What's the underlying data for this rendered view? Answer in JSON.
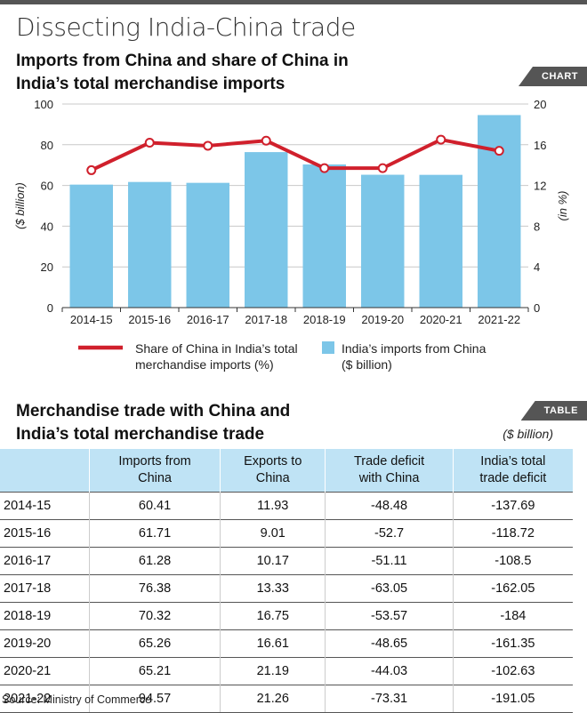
{
  "main_title": "Dissecting India-China trade",
  "chart_section": {
    "title_line1": "Imports from China and share of China in",
    "title_line2": "India’s total merchandise imports",
    "tag": "CHART"
  },
  "chart_data": {
    "type": "bar",
    "categories": [
      "2014-15",
      "2015-16",
      "2016-17",
      "2017-18",
      "2018-19",
      "2019-20",
      "2020-21",
      "2021-22"
    ],
    "series": [
      {
        "name": "India’s imports from China ($ billion)",
        "kind": "bar",
        "axis": "left",
        "values": [
          60.41,
          61.71,
          61.28,
          76.38,
          70.32,
          65.26,
          65.21,
          94.57
        ]
      },
      {
        "name": "Share of China in India’s total merchandise imports (%)",
        "kind": "line",
        "axis": "right",
        "values": [
          13.5,
          16.2,
          15.9,
          16.4,
          13.7,
          13.7,
          16.5,
          15.4
        ]
      }
    ],
    "ylabel": "($ billion)",
    "y2label": "(in %)",
    "ylim": [
      0,
      100
    ],
    "y2lim": [
      0,
      20
    ],
    "yticks": [
      0,
      20,
      40,
      60,
      80,
      100
    ],
    "y2ticks": [
      0,
      4,
      8,
      12,
      16,
      20
    ],
    "bar_color": "#7cc6e8",
    "line_color": "#d0202c",
    "legend": {
      "line_label_1": "Share of China in India’s total",
      "line_label_2": "merchandise imports (%)",
      "bar_label_1": "India’s imports from China",
      "bar_label_2": "($ billion)"
    }
  },
  "table_section": {
    "title_line1": "Merchandise trade with China and",
    "title_line2": "India’s total merchandise trade",
    "tag": "TABLE",
    "unit": "($ billion)",
    "headers": [
      [
        "",
        ""
      ],
      [
        "Imports from",
        "China"
      ],
      [
        "Exports to",
        "China"
      ],
      [
        "Trade deficit",
        "with China"
      ],
      [
        "India’s total",
        "trade deficit"
      ]
    ],
    "rows": [
      [
        "2014-15",
        "60.41",
        "11.93",
        "-48.48",
        "-137.69"
      ],
      [
        "2015-16",
        "61.71",
        "9.01",
        "-52.7",
        "-118.72"
      ],
      [
        "2016-17",
        "61.28",
        "10.17",
        "-51.11",
        "-108.5"
      ],
      [
        "2017-18",
        "76.38",
        "13.33",
        "-63.05",
        "-162.05"
      ],
      [
        "2018-19",
        "70.32",
        "16.75",
        "-53.57",
        "-184"
      ],
      [
        "2019-20",
        "65.26",
        "16.61",
        "-48.65",
        "-161.35"
      ],
      [
        "2020-21",
        "65.21",
        "21.19",
        "-44.03",
        "-102.63"
      ],
      [
        "2021-22",
        "94.57",
        "21.26",
        "-73.31",
        "-191.05"
      ]
    ]
  },
  "source": "Source: Ministry of Commerce"
}
